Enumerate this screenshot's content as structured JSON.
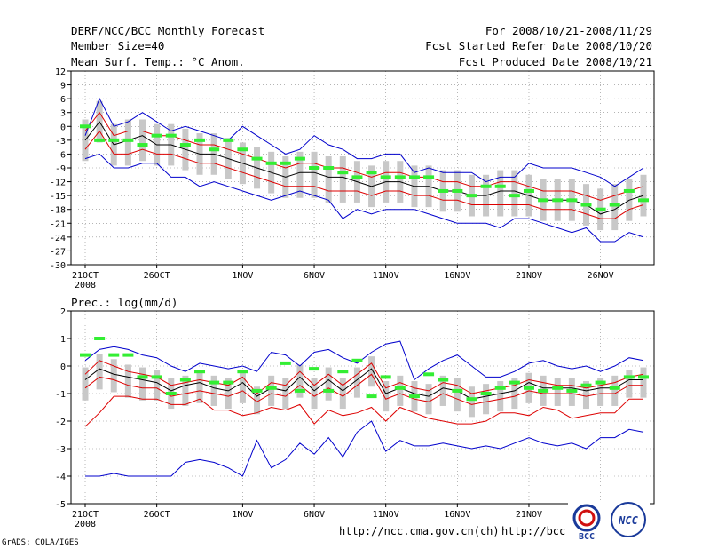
{
  "header": {
    "title": "DERF/NCC/BCC Monthly Forecast",
    "member": "Member Size=40",
    "variable": "Mean Surf. Temp.: °C Anom.",
    "period": "For 2008/10/21-2008/11/29",
    "started": "Fcst Started Refer Date 2008/10/20",
    "produced": "Fcst Produced Date 2008/10/21"
  },
  "footer": {
    "url1": "http://ncc.cma.gov.cn(ch)",
    "url2": "http://bcc.c",
    "grads": "GrADS: COLA/IGES",
    "logo1": "BCC",
    "logo2": "NCC"
  },
  "colors": {
    "envelope": "#0000cc",
    "spread": "#dd0000",
    "mean": "#000000",
    "member": "#33ee33",
    "box": "#c8c8c8"
  },
  "chart_data": [
    {
      "type": "line",
      "title": "",
      "ylabel": "Mean Surf. Temp.: °C Anom.",
      "ylim": [
        -30,
        12
      ],
      "yticks": [
        12,
        9,
        6,
        3,
        0,
        -3,
        -6,
        -9,
        -12,
        -15,
        -18,
        -21,
        -24,
        -27,
        -30
      ],
      "xticks": [
        {
          "day": 0,
          "label": "21OCT"
        },
        {
          "day": 5,
          "label": "26OCT"
        },
        {
          "day": 11,
          "label": "1NOV"
        },
        {
          "day": 16,
          "label": "6NOV"
        },
        {
          "day": 21,
          "label": "11NOV"
        },
        {
          "day": 26,
          "label": "16NOV"
        },
        {
          "day": 31,
          "label": "21NOV"
        },
        {
          "day": 36,
          "label": "26NOV"
        }
      ],
      "year_label": "2008",
      "days": 40,
      "series": [
        {
          "name": "max",
          "values": [
            -2,
            6,
            0,
            1,
            3,
            1,
            -1,
            0,
            -1,
            -2,
            -3,
            0,
            -2,
            -4,
            -6,
            -5,
            -2,
            -4,
            -5,
            -7,
            -7,
            -6,
            -6,
            -10,
            -9,
            -10,
            -10,
            -10,
            -12,
            -11,
            -11,
            -8,
            -9,
            -9,
            -9,
            -10,
            -11,
            -13,
            -11,
            -9
          ]
        },
        {
          "name": "upper",
          "values": [
            -1,
            3,
            -2,
            -1,
            -1,
            -2,
            -2,
            -3,
            -4,
            -4,
            -5,
            -6,
            -7,
            -8,
            -9,
            -8,
            -8,
            -9,
            -9,
            -10,
            -11,
            -10,
            -10,
            -11,
            -11,
            -12,
            -12,
            -13,
            -13,
            -12,
            -12,
            -13,
            -14,
            -14,
            -14,
            -15,
            -16,
            -15,
            -14,
            -13
          ]
        },
        {
          "name": "mean",
          "values": [
            -3,
            1,
            -4,
            -3,
            -2,
            -4,
            -4,
            -5,
            -6,
            -6,
            -7,
            -8,
            -9,
            -10,
            -11,
            -10,
            -10,
            -11,
            -11,
            -12,
            -13,
            -12,
            -12,
            -13,
            -13,
            -14,
            -14,
            -15,
            -15,
            -14,
            -14,
            -15,
            -16,
            -16,
            -16,
            -17,
            -19,
            -18,
            -16,
            -15
          ]
        },
        {
          "name": "lower",
          "values": [
            -5,
            -1,
            -6,
            -6,
            -5,
            -6,
            -6,
            -7,
            -8,
            -8,
            -9,
            -10,
            -11,
            -12,
            -13,
            -13,
            -13,
            -14,
            -14,
            -14,
            -15,
            -14,
            -14,
            -15,
            -15,
            -16,
            -16,
            -17,
            -17,
            -17,
            -17,
            -17,
            -18,
            -18,
            -18,
            -19,
            -20,
            -20,
            -18,
            -17
          ]
        },
        {
          "name": "min",
          "values": [
            -7,
            -6,
            -9,
            -9,
            -8,
            -8,
            -11,
            -11,
            -13,
            -12,
            -13,
            -14,
            -15,
            -16,
            -15,
            -14,
            -15,
            -16,
            -20,
            -18,
            -19,
            -18,
            -18,
            -18,
            -19,
            -20,
            -21,
            -21,
            -21,
            -22,
            -20,
            -20,
            -21,
            -22,
            -23,
            -22,
            -25,
            -25,
            -23,
            -24
          ]
        },
        {
          "name": "members",
          "values": [
            0,
            -3,
            -3,
            -3,
            -4,
            -2,
            -2,
            -4,
            -3,
            -5,
            -3,
            -5,
            -7,
            -8,
            -8,
            -7,
            -9,
            -9,
            -10,
            -11,
            -10,
            -11,
            -11,
            -11,
            -11,
            -14,
            -14,
            -15,
            -13,
            -13,
            -15,
            -14,
            -16,
            -16,
            -16,
            -17,
            -18,
            -17,
            -14,
            -16
          ]
        }
      ]
    },
    {
      "type": "line",
      "title": "",
      "ylabel": "Prec.: log(mm/d)",
      "ylim": [
        -5,
        2
      ],
      "yticks": [
        2,
        1,
        0,
        -1,
        -2,
        -3,
        -4,
        -5
      ],
      "xticks": [
        {
          "day": 0,
          "label": "21OCT"
        },
        {
          "day": 5,
          "label": "26OCT"
        },
        {
          "day": 11,
          "label": "1NOV"
        },
        {
          "day": 16,
          "label": "6NOV"
        },
        {
          "day": 21,
          "label": "11NOV"
        },
        {
          "day": 26,
          "label": "16NOV"
        },
        {
          "day": 31,
          "label": "21NOV"
        },
        {
          "day": 36,
          "label": "26NOV"
        }
      ],
      "year_label": "2008",
      "days": 40,
      "series": [
        {
          "name": "max",
          "values": [
            0.2,
            0.6,
            0.7,
            0.6,
            0.4,
            0.3,
            0.0,
            -0.2,
            0.1,
            0.0,
            -0.1,
            0.0,
            -0.2,
            0.5,
            0.4,
            0.0,
            0.5,
            0.6,
            0.3,
            0.1,
            0.5,
            0.8,
            0.9,
            -0.5,
            -0.1,
            0.2,
            0.4,
            0.0,
            -0.4,
            -0.4,
            -0.2,
            0.1,
            0.2,
            0.0,
            -0.1,
            0.0,
            -0.2,
            0.0,
            0.3,
            0.2
          ]
        },
        {
          "name": "upper",
          "values": [
            -0.3,
            0.2,
            0.0,
            -0.2,
            -0.3,
            -0.4,
            -0.7,
            -0.6,
            -0.5,
            -0.6,
            -0.7,
            -0.4,
            -1.0,
            -0.6,
            -0.7,
            -0.2,
            -0.7,
            -0.3,
            -0.7,
            -0.3,
            0.1,
            -0.8,
            -0.6,
            -0.8,
            -0.9,
            -0.6,
            -0.7,
            -1.0,
            -0.9,
            -0.8,
            -0.7,
            -0.5,
            -0.6,
            -0.7,
            -0.7,
            -0.8,
            -0.7,
            -0.6,
            -0.4,
            -0.3
          ]
        },
        {
          "name": "mean",
          "values": [
            -0.5,
            -0.1,
            -0.3,
            -0.4,
            -0.5,
            -0.6,
            -0.9,
            -0.7,
            -0.6,
            -0.8,
            -0.9,
            -0.6,
            -1.1,
            -0.8,
            -0.9,
            -0.4,
            -0.9,
            -0.5,
            -0.9,
            -0.5,
            -0.1,
            -1.0,
            -0.8,
            -1.0,
            -1.1,
            -0.8,
            -0.9,
            -1.2,
            -1.1,
            -1.0,
            -0.9,
            -0.6,
            -0.8,
            -0.8,
            -0.8,
            -0.9,
            -0.8,
            -0.8,
            -0.5,
            -0.5
          ]
        },
        {
          "name": "lower",
          "values": [
            -0.8,
            -0.4,
            -0.5,
            -0.7,
            -0.8,
            -0.8,
            -1.1,
            -1.0,
            -0.9,
            -1.0,
            -1.1,
            -0.9,
            -1.3,
            -1.0,
            -1.1,
            -0.7,
            -1.1,
            -0.8,
            -1.1,
            -0.7,
            -0.3,
            -1.2,
            -1.0,
            -1.2,
            -1.3,
            -1.0,
            -1.2,
            -1.4,
            -1.3,
            -1.2,
            -1.1,
            -0.9,
            -1.0,
            -1.0,
            -1.0,
            -1.1,
            -1.0,
            -1.0,
            -0.7,
            -0.7
          ]
        },
        {
          "name": "lowest",
          "values": [
            -2.2,
            -1.7,
            -1.1,
            -1.1,
            -1.2,
            -1.2,
            -1.4,
            -1.4,
            -1.2,
            -1.6,
            -1.6,
            -1.8,
            -1.7,
            -1.5,
            -1.6,
            -1.4,
            -2.1,
            -1.6,
            -1.8,
            -1.7,
            -1.5,
            -2.0,
            -1.5,
            -1.7,
            -1.9,
            -2.0,
            -2.1,
            -2.1,
            -2.0,
            -1.7,
            -1.7,
            -1.8,
            -1.5,
            -1.6,
            -1.9,
            -1.8,
            -1.7,
            -1.7,
            -1.2,
            -1.2
          ]
        },
        {
          "name": "min",
          "values": [
            -4.0,
            -4.0,
            -3.9,
            -4.0,
            -4.0,
            -4.0,
            -4.0,
            -3.5,
            -3.4,
            -3.5,
            -3.7,
            -4.0,
            -2.7,
            -3.7,
            -3.4,
            -2.8,
            -3.2,
            -2.6,
            -3.3,
            -2.4,
            -2.0,
            -3.1,
            -2.7,
            -2.9,
            -2.9,
            -2.8,
            -2.9,
            -3.0,
            -2.9,
            -3.0,
            -2.8,
            -2.6,
            -2.8,
            -2.9,
            -2.8,
            -3.0,
            -2.6,
            -2.6,
            -2.3,
            -2.4
          ]
        },
        {
          "name": "members",
          "values": [
            0.4,
            1.0,
            0.4,
            0.4,
            -0.4,
            -0.4,
            -1.0,
            -0.5,
            -0.2,
            -0.6,
            -0.6,
            -0.2,
            -0.9,
            -0.8,
            0.1,
            -0.9,
            -0.1,
            -0.9,
            -0.2,
            0.2,
            -1.1,
            -0.4,
            -0.8,
            -1.1,
            -0.3,
            -0.5,
            -0.9,
            -1.2,
            -1.0,
            -0.8,
            -0.6,
            -0.8,
            -0.9,
            -0.8,
            -0.9,
            -0.7,
            -0.6,
            -0.8,
            -0.4,
            -0.4
          ]
        }
      ]
    }
  ]
}
